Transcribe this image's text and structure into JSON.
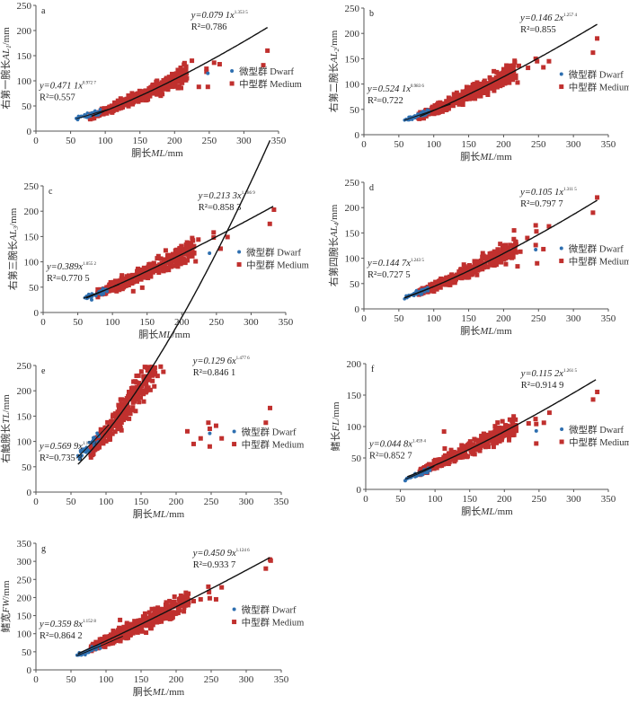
{
  "colors": {
    "dwarf": "#2e6fb0",
    "medium": "#c0302e",
    "fit": "#111111",
    "axis": "#555555"
  },
  "chart_data": [
    {
      "id": "a",
      "type": "scatter",
      "panel_label": "a",
      "xlabel_cn": "胴长",
      "xlabel_var": "ML",
      "xlabel_unit": "/mm",
      "ylabel_cn": "右第一腕长",
      "ylabel_var": "AL",
      "ylabel_sub": "1",
      "ylabel_unit": "/mm",
      "xlim": [
        0,
        350
      ],
      "ylim": [
        0,
        250
      ],
      "xticks": [
        0,
        50,
        100,
        150,
        200,
        250,
        300,
        350
      ],
      "yticks": [
        0,
        50,
        100,
        150,
        200,
        250
      ],
      "legend": [
        "微型群 Dwarf",
        "中型群 Medium"
      ],
      "legend_placement": "right",
      "series": [
        {
          "name": "微型群 Dwarf",
          "fit": {
            "a": 0.4711,
            "b": 0.9727,
            "x_range": [
              58,
              105
            ]
          },
          "eq_text": "y=0.471 1x",
          "exp_text": "0.972 7",
          "r2_text": "R²=0.557",
          "r2": 0.557
        },
        {
          "name": "中型群 Medium",
          "fit": {
            "a": 0.0791,
            "b": 1.3535,
            "x_range": [
              80,
              335
            ]
          },
          "eq_text": "y=0.079 1x",
          "exp_text": "1.353 5",
          "r2_text": "R²=0.786",
          "r2": 0.786
        }
      ],
      "outliers_medium": [
        [
          225,
          140
        ],
        [
          235,
          88
        ],
        [
          248,
          88
        ],
        [
          257,
          136
        ],
        [
          265,
          133
        ],
        [
          328,
          131
        ],
        [
          334,
          160
        ],
        [
          246,
          124
        ],
        [
          246,
          118
        ]
      ],
      "outliers_dwarf": [
        [
          248,
          115
        ]
      ]
    },
    {
      "id": "b",
      "type": "scatter",
      "panel_label": "b",
      "xlabel_cn": "胴长",
      "xlabel_var": "ML",
      "xlabel_unit": "/mm",
      "ylabel_cn": "右第二腕长",
      "ylabel_var": "AL",
      "ylabel_sub": "2",
      "ylabel_unit": "/mm",
      "xlim": [
        0,
        350
      ],
      "ylim": [
        0,
        250
      ],
      "xticks": [
        0,
        50,
        100,
        150,
        200,
        250,
        300,
        350
      ],
      "yticks": [
        0,
        50,
        100,
        150,
        200,
        250
      ],
      "legend": [
        "微型群 Dwarf",
        "中型群 Medium"
      ],
      "legend_placement": "right",
      "series": [
        {
          "name": "微型群 Dwarf",
          "fit": {
            "a": 0.5241,
            "b": 0.9836,
            "x_range": [
              58,
              125
            ]
          },
          "eq_text": "y=0.524 1x",
          "exp_text": "0.983 6",
          "r2_text": "R²=0.722",
          "r2": 0.722
        },
        {
          "name": "中型群 Medium",
          "fit": {
            "a": 0.1462,
            "b": 1.2574,
            "x_range": [
              80,
              335
            ]
          },
          "eq_text": "y=0.146 2x",
          "exp_text": "1.257 4",
          "r2_text": "R²=0.855",
          "r2": 0.855
        }
      ],
      "outliers_medium": [
        [
          215,
          137
        ],
        [
          222,
          136
        ],
        [
          235,
          132
        ],
        [
          246,
          150
        ],
        [
          248,
          145
        ],
        [
          257,
          133
        ],
        [
          265,
          145
        ],
        [
          328,
          162
        ],
        [
          334,
          190
        ],
        [
          220,
          103
        ]
      ],
      "outliers_dwarf": []
    },
    {
      "id": "c",
      "type": "scatter",
      "panel_label": "c",
      "xlabel_cn": "胴长",
      "xlabel_var": "ML",
      "xlabel_unit": "/mm",
      "ylabel_cn": "右第三腕长",
      "ylabel_var": "AL",
      "ylabel_sub": "3",
      "ylabel_unit": "/mm",
      "xlim": [
        0,
        350
      ],
      "ylim": [
        0,
        250
      ],
      "xticks": [
        0,
        50,
        100,
        150,
        200,
        250,
        300,
        350
      ],
      "yticks": [
        0,
        50,
        100,
        150,
        200,
        250
      ],
      "legend": [
        "微型群 Dwarf",
        "中型群 Medium"
      ],
      "legend_placement": "right",
      "series": [
        {
          "name": "微型群 Dwarf",
          "fit": {
            "a": 0.389,
            "b": 1.0552,
            "x_range": [
              58,
              110
            ]
          },
          "eq_text": "y=0.389x",
          "exp_text": "1.055 2",
          "r2_text": "R²=0.770 5",
          "r2": 0.7705
        },
        {
          "name": "中型群 Medium",
          "fit": {
            "a": 0.2133,
            "b": 1.1869,
            "x_range": [
              62,
              333
            ]
          },
          "eq_text": "y=0.213 3x",
          "exp_text": "1.186 9",
          "r2_text": "R²=0.858 3",
          "r2": 0.8583
        }
      ],
      "outliers_medium": [
        [
          215,
          147
        ],
        [
          224,
          144
        ],
        [
          246,
          158
        ],
        [
          246,
          148
        ],
        [
          256,
          126
        ],
        [
          266,
          149
        ],
        [
          327,
          175
        ],
        [
          333,
          203
        ],
        [
          220,
          101
        ],
        [
          130,
          42
        ],
        [
          143,
          49
        ]
      ],
      "outliers_dwarf": [
        [
          240,
          117
        ],
        [
          70,
          25
        ]
      ]
    },
    {
      "id": "d",
      "type": "scatter",
      "panel_label": "d",
      "xlabel_cn": "胴长",
      "xlabel_var": "ML",
      "xlabel_unit": "/mm",
      "ylabel_cn": "右第四腕长",
      "ylabel_var": "AL",
      "ylabel_sub": "4",
      "ylabel_unit": "/mm",
      "xlim": [
        0,
        350
      ],
      "ylim": [
        0,
        250
      ],
      "xticks": [
        0,
        50,
        100,
        150,
        200,
        250,
        300,
        350
      ],
      "yticks": [
        0,
        50,
        100,
        150,
        200,
        250
      ],
      "legend": [
        "微型群 Dwarf",
        "中型群 Medium"
      ],
      "legend_placement": "right",
      "series": [
        {
          "name": "微型群 Dwarf",
          "fit": {
            "a": 0.1447,
            "b": 1.2435,
            "x_range": [
              58,
              100
            ]
          },
          "eq_text": "y=0.144 7x",
          "exp_text": "1.243 5",
          "r2_text": "R²=0.727 5",
          "r2": 0.7275
        },
        {
          "name": "中型群 Medium",
          "fit": {
            "a": 0.1051,
            "b": 1.3115,
            "x_range": [
              58,
              335
            ]
          },
          "eq_text": "y=0.105 1x",
          "exp_text": "1.311 5",
          "r2_text": "R²=0.797 7",
          "r2": 0.7977
        }
      ],
      "outliers_medium": [
        [
          215,
          155
        ],
        [
          234,
          140
        ],
        [
          246,
          165
        ],
        [
          246,
          126
        ],
        [
          247,
          153
        ],
        [
          265,
          163
        ],
        [
          328,
          190
        ],
        [
          334,
          220
        ],
        [
          220,
          84
        ],
        [
          224,
          113
        ],
        [
          248,
          90
        ],
        [
          257,
          118
        ]
      ],
      "outliers_dwarf": [
        [
          246,
          117
        ]
      ]
    },
    {
      "id": "e",
      "type": "scatter",
      "panel_label": "e",
      "xlabel_cn": "胴长",
      "xlabel_var": "ML",
      "xlabel_unit": "/mm",
      "ylabel_cn": "右触腕长",
      "ylabel_var": "TL",
      "ylabel_sub": "",
      "ylabel_unit": "/mm",
      "xlim": [
        0,
        350
      ],
      "ylim": [
        0,
        250
      ],
      "xticks": [
        0,
        50,
        100,
        150,
        200,
        250,
        300,
        350
      ],
      "yticks": [
        0,
        50,
        100,
        150,
        200,
        250
      ],
      "legend": [
        "微型群 Dwarf",
        "中型群 Medium"
      ],
      "legend_placement": "right",
      "series": [
        {
          "name": "微型群 Dwarf",
          "fit": {
            "a": 0.5699,
            "b": 1.1739,
            "x_range": [
              58,
              105
            ]
          },
          "eq_text": "y=0.569 9x",
          "exp_text": "1.173 9",
          "r2_text": "R²=0.735 3",
          "r2": 0.7353
        },
        {
          "name": "中型群 Medium",
          "fit": {
            "a": 0.1296,
            "b": 1.4776,
            "x_range": [
              60,
              335
            ]
          },
          "eq_text": "y=0.129 6x",
          "exp_text": "1.477 6",
          "r2_text": "R²=0.846 1",
          "r2": 0.8461
        }
      ],
      "outliers_medium": [
        [
          235,
          106
        ],
        [
          246,
          137
        ],
        [
          248,
          125
        ],
        [
          248,
          90
        ],
        [
          257,
          131
        ],
        [
          265,
          106
        ],
        [
          328,
          137
        ],
        [
          334,
          166
        ],
        [
          216,
          120
        ],
        [
          225,
          95
        ]
      ],
      "outliers_dwarf": [
        [
          248,
          116
        ]
      ]
    },
    {
      "id": "f",
      "type": "scatter",
      "panel_label": "f",
      "xlabel_cn": "胴长",
      "xlabel_var": "ML",
      "xlabel_unit": "/mm",
      "ylabel_cn": "鳍长",
      "ylabel_var": "FL",
      "ylabel_sub": "",
      "ylabel_unit": "/mm",
      "xlim": [
        0,
        350
      ],
      "ylim": [
        0,
        200
      ],
      "xticks": [
        0,
        50,
        100,
        150,
        200,
        250,
        300,
        350
      ],
      "yticks": [
        0,
        50,
        100,
        150,
        200
      ],
      "legend": [
        "微型群 Dwarf",
        "中型群 Medium"
      ],
      "legend_placement": "right",
      "series": [
        {
          "name": "微型群 Dwarf",
          "fit": {
            "a": 0.0448,
            "b": 1.4594,
            "x_range": [
              57,
              100
            ]
          },
          "eq_text": "y=0.044 8x",
          "exp_text": "1.459 4",
          "r2_text": "R²=0.852 7",
          "r2": 0.8527
        },
        {
          "name": "中型群 Medium",
          "fit": {
            "a": 0.1152,
            "b": 1.2615,
            "x_range": [
              60,
              333
            ]
          },
          "eq_text": "y=0.115 2x",
          "exp_text": "1.261 5",
          "r2_text": "R²=0.914 9",
          "r2": 0.9149
        }
      ],
      "outliers_medium": [
        [
          113,
          92
        ],
        [
          180,
          90
        ],
        [
          235,
          105
        ],
        [
          245,
          112
        ],
        [
          246,
          104
        ],
        [
          246,
          73
        ],
        [
          257,
          106
        ],
        [
          265,
          122
        ],
        [
          328,
          143
        ],
        [
          334,
          155
        ],
        [
          114,
          65
        ]
      ],
      "outliers_dwarf": [
        [
          246,
          93
        ],
        [
          57,
          14
        ]
      ]
    },
    {
      "id": "g",
      "type": "scatter",
      "panel_label": "g",
      "xlabel_cn": "胴长",
      "xlabel_var": "ML",
      "xlabel_unit": "/mm",
      "ylabel_cn": "鳍宽",
      "ylabel_var": "FW",
      "ylabel_sub": "",
      "ylabel_unit": "/mm",
      "xlim": [
        0,
        350
      ],
      "ylim": [
        0,
        350
      ],
      "xticks": [
        0,
        50,
        100,
        150,
        200,
        250,
        300,
        350
      ],
      "yticks": [
        0,
        50,
        100,
        150,
        200,
        250,
        300,
        350
      ],
      "legend": [
        "微型群 Dwarf",
        "中型群 Medium"
      ],
      "legend_placement": "right",
      "series": [
        {
          "name": "微型群 Dwarf",
          "fit": {
            "a": 0.3598,
            "b": 1.1528,
            "x_range": [
              58,
              125
            ]
          },
          "eq_text": "y=0.359 8x",
          "exp_text": "1.152 8",
          "r2_text": "R²=0.864 2",
          "r2": 0.8642
        },
        {
          "name": "中型群 Medium",
          "fit": {
            "a": 0.4509,
            "b": 1.1246,
            "x_range": [
              60,
              335
            ]
          },
          "eq_text": "y=0.450 9x",
          "exp_text": "1.124 6",
          "r2_text": "R²=0.933 7",
          "r2": 0.9337
        }
      ],
      "outliers_medium": [
        [
          225,
          190
        ],
        [
          235,
          195
        ],
        [
          246,
          230
        ],
        [
          247,
          215
        ],
        [
          248,
          198
        ],
        [
          257,
          195
        ],
        [
          265,
          228
        ],
        [
          328,
          280
        ],
        [
          334,
          305
        ],
        [
          335,
          302
        ],
        [
          120,
          138
        ]
      ],
      "outliers_dwarf": []
    }
  ]
}
